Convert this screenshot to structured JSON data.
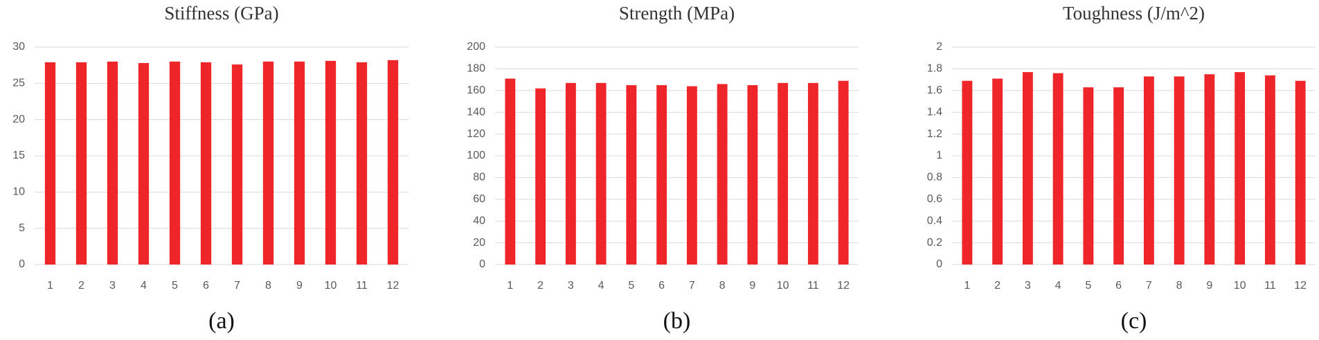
{
  "chart_data": [
    {
      "type": "bar",
      "title": "Stiffness (GPa)",
      "caption": "(a)",
      "categories": [
        "1",
        "2",
        "3",
        "4",
        "5",
        "6",
        "7",
        "8",
        "9",
        "10",
        "11",
        "12"
      ],
      "values": [
        27.9,
        27.9,
        28.0,
        27.8,
        28.0,
        27.9,
        27.6,
        28.0,
        28.0,
        28.1,
        27.9,
        28.2
      ],
      "color": "#ee2529",
      "ylim": [
        0,
        30
      ],
      "yticks": [
        0,
        5,
        10,
        15,
        20,
        25,
        30
      ],
      "grid": true
    },
    {
      "type": "bar",
      "title": "Strength (MPa)",
      "caption": "(b)",
      "categories": [
        "1",
        "2",
        "3",
        "4",
        "5",
        "6",
        "7",
        "8",
        "9",
        "10",
        "11",
        "12"
      ],
      "values": [
        171,
        162,
        167,
        167,
        165,
        165,
        164,
        166,
        165,
        167,
        167,
        169
      ],
      "color": "#ee2529",
      "ylim": [
        0,
        200
      ],
      "yticks": [
        0,
        20,
        40,
        60,
        80,
        100,
        120,
        140,
        160,
        180,
        200
      ],
      "grid": true
    },
    {
      "type": "bar",
      "title": "Toughness (J/m^2)",
      "caption": "(c)",
      "categories": [
        "1",
        "2",
        "3",
        "4",
        "5",
        "6",
        "7",
        "8",
        "9",
        "10",
        "11",
        "12"
      ],
      "values": [
        1.69,
        1.71,
        1.77,
        1.76,
        1.63,
        1.63,
        1.73,
        1.73,
        1.75,
        1.77,
        1.74,
        1.69
      ],
      "color": "#ee2529",
      "ylim": [
        0,
        2
      ],
      "yticks": [
        0,
        0.2,
        0.4,
        0.6,
        0.8,
        1,
        1.2,
        1.4,
        1.6,
        1.8,
        2
      ],
      "grid": true
    }
  ]
}
